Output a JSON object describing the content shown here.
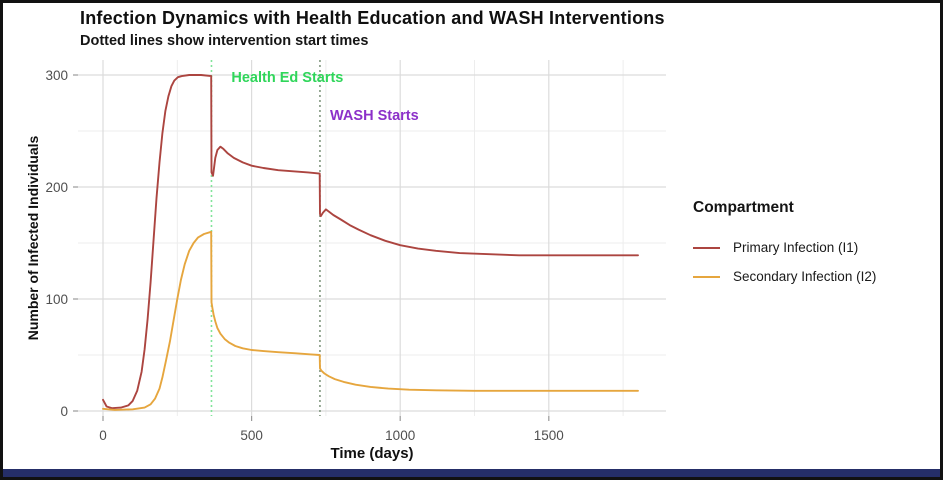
{
  "window": {
    "border_color": "#111111",
    "bottom_bar_color": "#252E68"
  },
  "chart_data": {
    "type": "line",
    "title": "Infection Dynamics with Health Education and WASH Interventions",
    "subtitle": "Dotted lines show intervention start times",
    "xlabel": "Time (days)",
    "ylabel": "Number of Infected Individuals",
    "xlim": [
      0,
      1850
    ],
    "ylim": [
      0,
      310
    ],
    "grid": true,
    "x_ticks": [
      0,
      500,
      1000,
      1500
    ],
    "x_tick_labels": [
      "0",
      "500",
      "1000",
      "1500"
    ],
    "x_minor_ticks": [
      250,
      750,
      1250,
      1750
    ],
    "y_ticks": [
      0,
      100,
      200,
      300
    ],
    "y_tick_labels": [
      "0",
      "100",
      "200",
      "300"
    ],
    "y_minor_ticks": [
      50,
      150,
      250
    ],
    "legend_title": "Compartment",
    "legend_position": "right",
    "series": [
      {
        "name": "Primary Infection (I1)",
        "color": "#AC4540",
        "points": [
          [
            0,
            10
          ],
          [
            12,
            4
          ],
          [
            30,
            2.5
          ],
          [
            60,
            3
          ],
          [
            85,
            5
          ],
          [
            100,
            9
          ],
          [
            115,
            18
          ],
          [
            130,
            35
          ],
          [
            140,
            55
          ],
          [
            150,
            82
          ],
          [
            160,
            115
          ],
          [
            170,
            152
          ],
          [
            180,
            190
          ],
          [
            190,
            222
          ],
          [
            200,
            248
          ],
          [
            210,
            268
          ],
          [
            220,
            281
          ],
          [
            230,
            290
          ],
          [
            240,
            295
          ],
          [
            252,
            298
          ],
          [
            265,
            299
          ],
          [
            290,
            300
          ],
          [
            330,
            300
          ],
          [
            364,
            299
          ],
          [
            365,
            213
          ],
          [
            370,
            210
          ],
          [
            372,
            214
          ],
          [
            378,
            226
          ],
          [
            385,
            233
          ],
          [
            395,
            236
          ],
          [
            405,
            234
          ],
          [
            420,
            230
          ],
          [
            440,
            226
          ],
          [
            470,
            222
          ],
          [
            500,
            219
          ],
          [
            540,
            217
          ],
          [
            590,
            215
          ],
          [
            640,
            214
          ],
          [
            690,
            213
          ],
          [
            729,
            212
          ],
          [
            730,
            176
          ],
          [
            733,
            174
          ],
          [
            740,
            177
          ],
          [
            750,
            180
          ],
          [
            760,
            178
          ],
          [
            775,
            175
          ],
          [
            800,
            171
          ],
          [
            830,
            166
          ],
          [
            860,
            162
          ],
          [
            900,
            157
          ],
          [
            950,
            152
          ],
          [
            1000,
            148
          ],
          [
            1060,
            145
          ],
          [
            1120,
            143
          ],
          [
            1200,
            141
          ],
          [
            1300,
            140
          ],
          [
            1400,
            139
          ],
          [
            1500,
            139
          ],
          [
            1650,
            139
          ],
          [
            1800,
            139
          ]
        ]
      },
      {
        "name": "Secondary Infection (I2)",
        "color": "#E6A63E",
        "points": [
          [
            0,
            2
          ],
          [
            40,
            1
          ],
          [
            100,
            1.5
          ],
          [
            140,
            3
          ],
          [
            160,
            6
          ],
          [
            175,
            11
          ],
          [
            190,
            20
          ],
          [
            200,
            30
          ],
          [
            212,
            45
          ],
          [
            225,
            62
          ],
          [
            237,
            80
          ],
          [
            250,
            100
          ],
          [
            262,
            117
          ],
          [
            275,
            131
          ],
          [
            290,
            143
          ],
          [
            305,
            150
          ],
          [
            320,
            155
          ],
          [
            340,
            158
          ],
          [
            364,
            160
          ],
          [
            365,
            97
          ],
          [
            368,
            92
          ],
          [
            372,
            86
          ],
          [
            378,
            80
          ],
          [
            385,
            74
          ],
          [
            395,
            69
          ],
          [
            410,
            64
          ],
          [
            425,
            61
          ],
          [
            445,
            58
          ],
          [
            470,
            56
          ],
          [
            500,
            54.5
          ],
          [
            540,
            53.5
          ],
          [
            590,
            52.5
          ],
          [
            650,
            51.5
          ],
          [
            700,
            50.5
          ],
          [
            729,
            50
          ],
          [
            730,
            38
          ],
          [
            735,
            36
          ],
          [
            745,
            33.5
          ],
          [
            760,
            31
          ],
          [
            780,
            28.5
          ],
          [
            810,
            26
          ],
          [
            850,
            23.5
          ],
          [
            900,
            21.5
          ],
          [
            960,
            20
          ],
          [
            1030,
            19
          ],
          [
            1120,
            18.5
          ],
          [
            1250,
            18
          ],
          [
            1400,
            18
          ],
          [
            1600,
            18
          ],
          [
            1800,
            18
          ]
        ]
      }
    ],
    "vlines": [
      {
        "x": 365,
        "style": "dotted",
        "color": "#82E49A",
        "label": "Health Ed Starts"
      },
      {
        "x": 730,
        "style": "dotted",
        "color": "#80967F",
        "label": "WASH Starts"
      }
    ],
    "annotations": [
      {
        "text": "Health Ed Starts",
        "color": "#2FD65A",
        "t": 432,
        "v": 304
      },
      {
        "text": "WASH Starts",
        "color": "#8C30C9",
        "t": 764,
        "v": 270
      }
    ]
  }
}
